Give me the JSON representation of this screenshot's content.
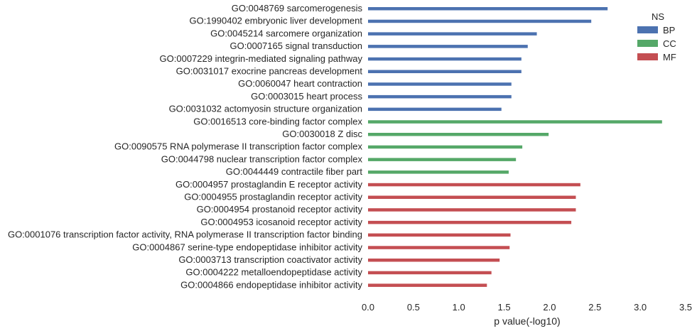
{
  "chart_data": {
    "type": "bar",
    "orientation": "horizontal",
    "xlabel": "p value(-log10)",
    "ylabel": "",
    "xlim": [
      0,
      3.5
    ],
    "xticks": [
      "0.0",
      "0.5",
      "1.0",
      "1.5",
      "2.0",
      "2.5",
      "3.0",
      "3.5"
    ],
    "grid": false,
    "legend": {
      "title": "NS",
      "placement": "top-right",
      "entries": [
        "BP",
        "CC",
        "MF"
      ]
    },
    "series_colors": {
      "BP": "#4c72b0",
      "CC": "#55a868",
      "MF": "#c44e52"
    },
    "bars": [
      {
        "label": "GO:0048769 sarcomerogenesis",
        "ns": "BP",
        "value": 2.64
      },
      {
        "label": "GO:1990402 embryonic liver development",
        "ns": "BP",
        "value": 2.46
      },
      {
        "label": "GO:0045214 sarcomere organization",
        "ns": "BP",
        "value": 1.86
      },
      {
        "label": "GO:0007165 signal transduction",
        "ns": "BP",
        "value": 1.76
      },
      {
        "label": "GO:0007229 integrin-mediated signaling pathway",
        "ns": "BP",
        "value": 1.69
      },
      {
        "label": "GO:0031017 exocrine pancreas development",
        "ns": "BP",
        "value": 1.69
      },
      {
        "label": "GO:0060047 heart contraction",
        "ns": "BP",
        "value": 1.58
      },
      {
        "label": "GO:0003015 heart process",
        "ns": "BP",
        "value": 1.58
      },
      {
        "label": "GO:0031032 actomyosin structure organization",
        "ns": "BP",
        "value": 1.47
      },
      {
        "label": "GO:0016513 core-binding factor complex",
        "ns": "CC",
        "value": 3.24
      },
      {
        "label": "GO:0030018 Z disc",
        "ns": "CC",
        "value": 1.99
      },
      {
        "label": "GO:0090575 RNA polymerase II transcription factor complex",
        "ns": "CC",
        "value": 1.7
      },
      {
        "label": "GO:0044798 nuclear transcription factor complex",
        "ns": "CC",
        "value": 1.63
      },
      {
        "label": "GO:0044449 contractile fiber part",
        "ns": "CC",
        "value": 1.55
      },
      {
        "label": "GO:0004957 prostaglandin E receptor activity",
        "ns": "MF",
        "value": 2.34
      },
      {
        "label": "GO:0004955 prostaglandin receptor activity",
        "ns": "MF",
        "value": 2.29
      },
      {
        "label": "GO:0004954 prostanoid receptor activity",
        "ns": "MF",
        "value": 2.29
      },
      {
        "label": "GO:0004953 icosanoid receptor activity",
        "ns": "MF",
        "value": 2.24
      },
      {
        "label": "GO:0001076 transcription factor activity, RNA polymerase II transcription factor binding",
        "ns": "MF",
        "value": 1.57
      },
      {
        "label": "GO:0004867 serine-type endopeptidase inhibitor activity",
        "ns": "MF",
        "value": 1.56
      },
      {
        "label": "GO:0003713 transcription coactivator activity",
        "ns": "MF",
        "value": 1.45
      },
      {
        "label": "GO:0004222 metalloendopeptidase activity",
        "ns": "MF",
        "value": 1.36
      },
      {
        "label": "GO:0004866 endopeptidase inhibitor activity",
        "ns": "MF",
        "value": 1.31
      }
    ]
  }
}
